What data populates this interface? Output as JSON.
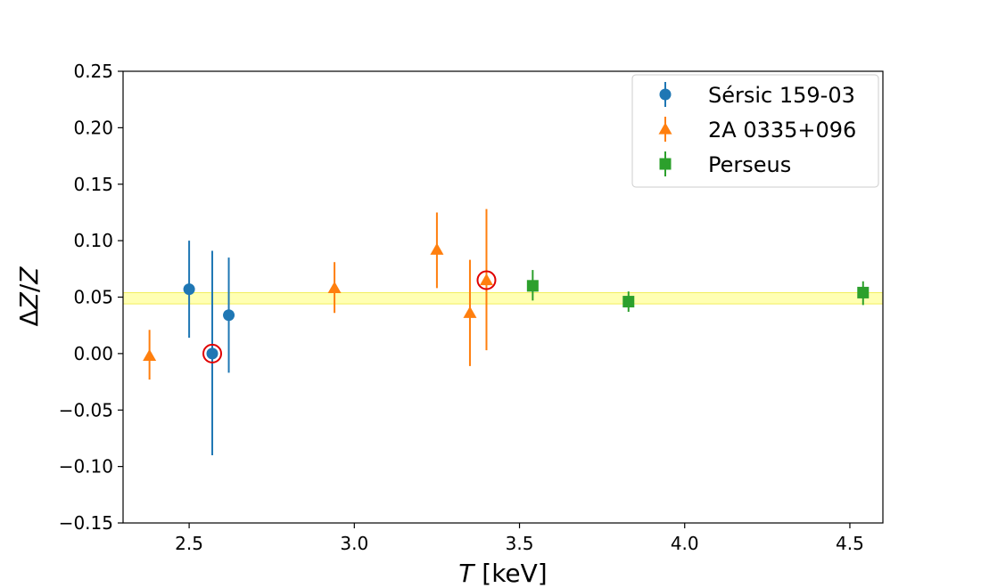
{
  "chart_data": {
    "type": "scatter",
    "title": "",
    "xlabel": {
      "italic": "T",
      "rest": " [keV]"
    },
    "ylabel": {
      "delta": "Δ",
      "z1": "Z",
      "slash": "/",
      "z2": "Z"
    },
    "xlim": [
      2.3,
      4.6
    ],
    "ylim": [
      -0.15,
      0.25
    ],
    "xticks": [
      2.5,
      3.0,
      3.5,
      4.0,
      4.5
    ],
    "xtick_labels": [
      "2.5",
      "3.0",
      "3.5",
      "4.0",
      "4.5"
    ],
    "yticks": [
      -0.15,
      -0.1,
      -0.05,
      0.0,
      0.05,
      0.1,
      0.15,
      0.2,
      0.25
    ],
    "ytick_labels": [
      "−0.15",
      "−0.10",
      "−0.05",
      "0.00",
      "0.05",
      "0.10",
      "0.15",
      "0.20",
      "0.25"
    ],
    "grid": false,
    "legend_position": "top-right",
    "band": {
      "y0": 0.044,
      "y1": 0.054,
      "color": "#ffff99"
    },
    "series": [
      {
        "name": "Sérsic 159-03",
        "marker": "circle",
        "color": "#1f77b4",
        "points": [
          {
            "x": 2.5,
            "y": 0.057,
            "ylo": 0.014,
            "yhi": 0.1
          },
          {
            "x": 2.57,
            "y": 0.0,
            "ylo": -0.09,
            "yhi": 0.091,
            "highlight": true
          },
          {
            "x": 2.62,
            "y": 0.034,
            "ylo": -0.017,
            "yhi": 0.085
          }
        ]
      },
      {
        "name": "2A 0335+096",
        "marker": "triangle",
        "color": "#ff7f0e",
        "points": [
          {
            "x": 2.38,
            "y": -0.002,
            "ylo": -0.023,
            "yhi": 0.021
          },
          {
            "x": 2.94,
            "y": 0.058,
            "ylo": 0.036,
            "yhi": 0.081
          },
          {
            "x": 3.25,
            "y": 0.092,
            "ylo": 0.058,
            "yhi": 0.125
          },
          {
            "x": 3.35,
            "y": 0.036,
            "ylo": -0.011,
            "yhi": 0.083
          },
          {
            "x": 3.4,
            "y": 0.065,
            "ylo": 0.003,
            "yhi": 0.128,
            "highlight": true
          }
        ]
      },
      {
        "name": "Perseus",
        "marker": "square",
        "color": "#2ca02c",
        "points": [
          {
            "x": 3.54,
            "y": 0.06,
            "ylo": 0.047,
            "yhi": 0.074
          },
          {
            "x": 3.83,
            "y": 0.046,
            "ylo": 0.037,
            "yhi": 0.055
          },
          {
            "x": 4.54,
            "y": 0.054,
            "ylo": 0.043,
            "yhi": 0.064
          }
        ]
      }
    ],
    "highlight_color": "#e00000"
  }
}
